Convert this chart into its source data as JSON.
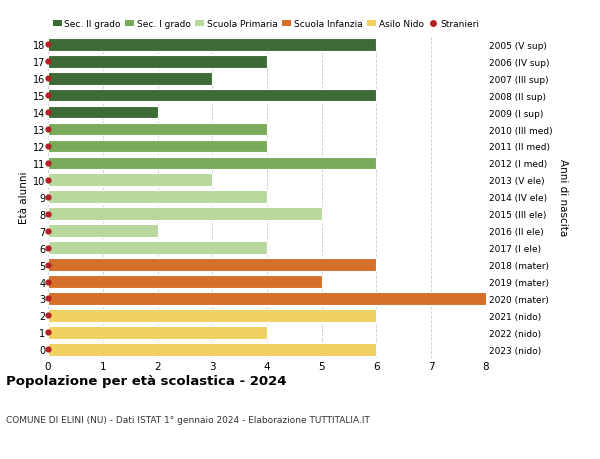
{
  "ages": [
    18,
    17,
    16,
    15,
    14,
    13,
    12,
    11,
    10,
    9,
    8,
    7,
    6,
    5,
    4,
    3,
    2,
    1,
    0
  ],
  "years": [
    "2005 (V sup)",
    "2006 (IV sup)",
    "2007 (III sup)",
    "2008 (II sup)",
    "2009 (I sup)",
    "2010 (III med)",
    "2011 (II med)",
    "2012 (I med)",
    "2013 (V ele)",
    "2014 (IV ele)",
    "2015 (III ele)",
    "2016 (II ele)",
    "2017 (I ele)",
    "2018 (mater)",
    "2019 (mater)",
    "2020 (mater)",
    "2021 (nido)",
    "2022 (nido)",
    "2023 (nido)"
  ],
  "values": [
    6,
    4,
    3,
    6,
    2,
    4,
    4,
    6,
    3,
    4,
    5,
    2,
    4,
    6,
    5,
    8,
    6,
    4,
    6
  ],
  "bar_colors": [
    "#3d6b35",
    "#3d6b35",
    "#3d6b35",
    "#3d6b35",
    "#3d6b35",
    "#7aab5a",
    "#7aab5a",
    "#7aab5a",
    "#b8d89e",
    "#b8d89e",
    "#b8d89e",
    "#b8d89e",
    "#b8d89e",
    "#d4702a",
    "#d4702a",
    "#d4702a",
    "#f0d060",
    "#f0d060",
    "#f0d060"
  ],
  "stranieri_color": "#b22222",
  "legend_labels": [
    "Sec. II grado",
    "Sec. I grado",
    "Scuola Primaria",
    "Scuola Infanzia",
    "Asilo Nido",
    "Stranieri"
  ],
  "legend_colors": [
    "#3d6b35",
    "#7aab5a",
    "#b8d89e",
    "#d4702a",
    "#f0d060",
    "#b22222"
  ],
  "ylabel_left": "Età alunni",
  "ylabel_right": "Anni di nascita",
  "title": "Popolazione per età scolastica - 2024",
  "subtitle": "COMUNE DI ELINI (NU) - Dati ISTAT 1° gennaio 2024 - Elaborazione TUTTITALIA.IT",
  "xlim": [
    0,
    8
  ],
  "background_color": "#ffffff",
  "grid_color": "#cccccc"
}
